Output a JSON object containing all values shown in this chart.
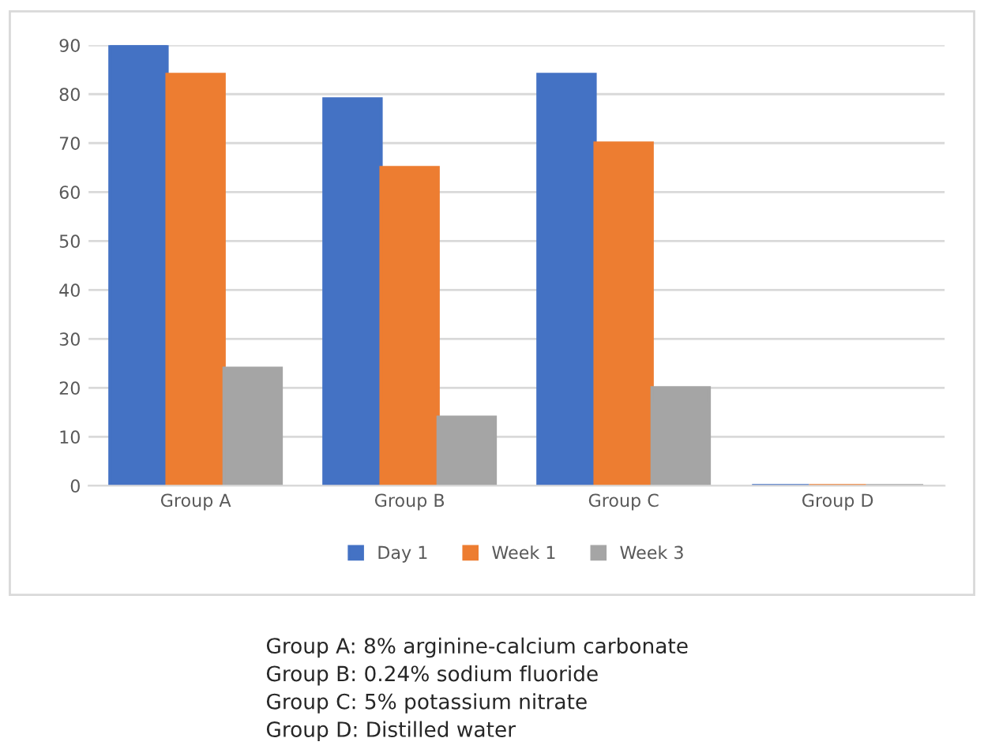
{
  "chart_data": {
    "type": "bar",
    "categories": [
      "Group A",
      "Group B",
      "Group C",
      "Group D"
    ],
    "series": [
      {
        "name": "Day 1",
        "color": "#4472c4",
        "values": [
          90,
          79,
          84,
          0
        ]
      },
      {
        "name": "Week 1",
        "color": "#ed7d31",
        "values": [
          84,
          65,
          70,
          0
        ]
      },
      {
        "name": "Week 3",
        "color": "#a5a5a5",
        "values": [
          24,
          14,
          20,
          0
        ]
      }
    ],
    "ylim": [
      0,
      90
    ],
    "yticks": [
      0,
      10,
      20,
      30,
      40,
      50,
      60,
      70,
      80,
      90
    ],
    "grid": "y",
    "legend": "bottom",
    "annotations": [
      "Group A: 8% arginine-calcium carbonate",
      "Group B: 0.24% sodium fluoride",
      "Group C: 5% potassium nitrate",
      "Group D: Distilled water"
    ]
  }
}
